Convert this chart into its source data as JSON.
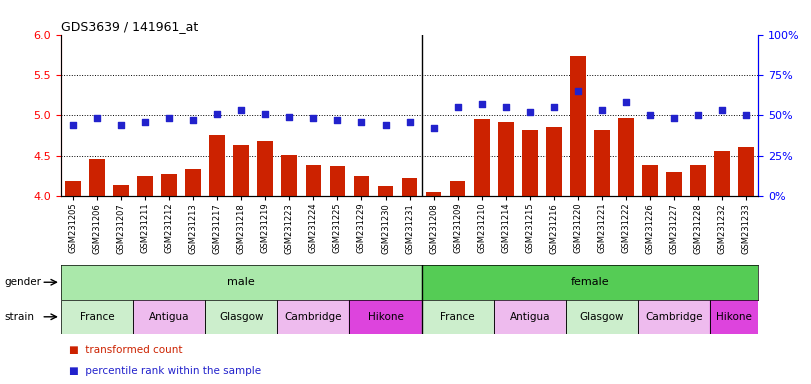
{
  "title": "GDS3639 / 141961_at",
  "samples": [
    "GSM231205",
    "GSM231206",
    "GSM231207",
    "GSM231211",
    "GSM231212",
    "GSM231213",
    "GSM231217",
    "GSM231218",
    "GSM231219",
    "GSM231223",
    "GSM231224",
    "GSM231225",
    "GSM231229",
    "GSM231230",
    "GSM231231",
    "GSM231208",
    "GSM231209",
    "GSM231210",
    "GSM231214",
    "GSM231215",
    "GSM231216",
    "GSM231220",
    "GSM231221",
    "GSM231222",
    "GSM231226",
    "GSM231227",
    "GSM231228",
    "GSM231232",
    "GSM231233"
  ],
  "bar_values": [
    4.18,
    4.46,
    4.13,
    4.25,
    4.27,
    4.33,
    4.76,
    4.63,
    4.68,
    4.51,
    4.38,
    4.37,
    4.25,
    4.12,
    4.22,
    4.05,
    4.18,
    4.95,
    4.92,
    4.82,
    4.85,
    5.73,
    4.82,
    4.97,
    4.38,
    4.3,
    4.38,
    4.55,
    4.6
  ],
  "percentile_values": [
    44,
    48,
    44,
    46,
    48,
    47,
    51,
    53,
    51,
    49,
    48,
    47,
    46,
    44,
    46,
    42,
    55,
    57,
    55,
    52,
    55,
    65,
    53,
    58,
    50,
    48,
    50,
    53,
    50
  ],
  "bar_color": "#cc2200",
  "dot_color": "#2222cc",
  "ylim_left": [
    4.0,
    6.0
  ],
  "ylim_right": [
    0,
    100
  ],
  "yticks_left": [
    4.0,
    4.5,
    5.0,
    5.5,
    6.0
  ],
  "yticks_right": [
    0,
    25,
    50,
    75,
    100
  ],
  "male_count": 15,
  "gender_male_color": "#aae8aa",
  "gender_female_color": "#55cc55",
  "strain_groups": [
    {
      "label": "France",
      "start": 0,
      "end": 3,
      "color": "#cceecc"
    },
    {
      "label": "Antigua",
      "start": 3,
      "end": 6,
      "color": "#eebbee"
    },
    {
      "label": "Glasgow",
      "start": 6,
      "end": 9,
      "color": "#cceecc"
    },
    {
      "label": "Cambridge",
      "start": 9,
      "end": 12,
      "color": "#eebbee"
    },
    {
      "label": "Hikone",
      "start": 12,
      "end": 15,
      "color": "#dd44dd"
    },
    {
      "label": "France",
      "start": 15,
      "end": 18,
      "color": "#cceecc"
    },
    {
      "label": "Antigua",
      "start": 18,
      "end": 21,
      "color": "#eebbee"
    },
    {
      "label": "Glasgow",
      "start": 21,
      "end": 24,
      "color": "#cceecc"
    },
    {
      "label": "Cambridge",
      "start": 24,
      "end": 27,
      "color": "#eebbee"
    },
    {
      "label": "Hikone",
      "start": 27,
      "end": 29,
      "color": "#dd44dd"
    }
  ]
}
